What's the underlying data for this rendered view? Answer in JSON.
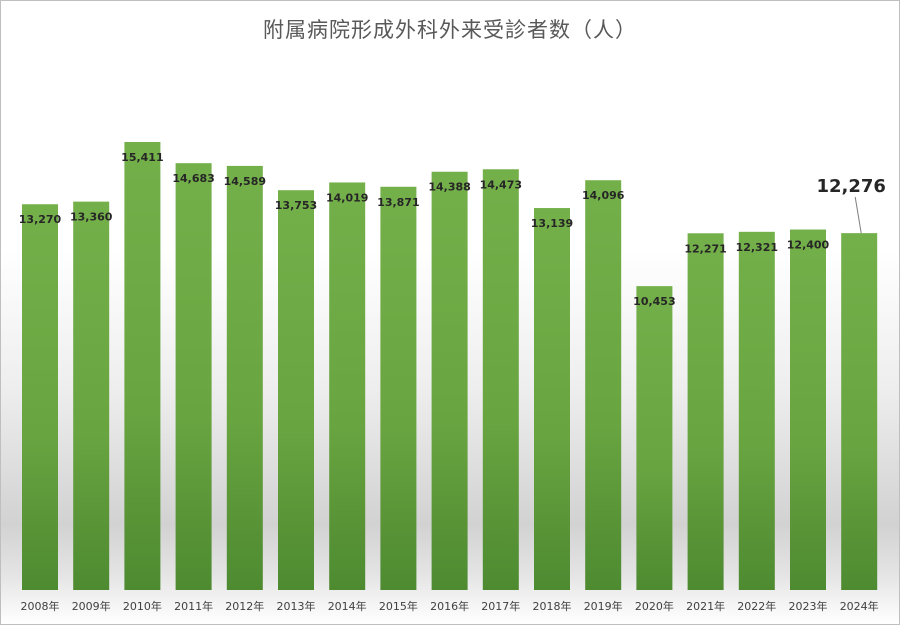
{
  "chart_data": {
    "type": "bar",
    "title": "附属病院形成外科外来受診者数（人）",
    "categories": [
      "2008年",
      "2009年",
      "2010年",
      "2011年",
      "2012年",
      "2013年",
      "2014年",
      "2015年",
      "2016年",
      "2017年",
      "2018年",
      "2019年",
      "2020年",
      "2021年",
      "2022年",
      "2023年",
      "2024年"
    ],
    "values": [
      13270,
      13360,
      15411,
      14683,
      14589,
      13753,
      14019,
      13871,
      14388,
      14473,
      13139,
      14096,
      10453,
      12271,
      12321,
      12400,
      12276
    ],
    "value_labels": [
      "13,270",
      "13,360",
      "15,411",
      "14,683",
      "14,589",
      "13,753",
      "14,019",
      "13,871",
      "14,388",
      "14,473",
      "13,139",
      "14,096",
      "10,453",
      "12,271",
      "12,321",
      "12,400",
      "12,276"
    ],
    "highlight": {
      "index": 16,
      "label": "12,276"
    },
    "ylim": [
      0,
      17000
    ],
    "bar_color": "#70ad47",
    "grid": false,
    "legend": "none"
  }
}
